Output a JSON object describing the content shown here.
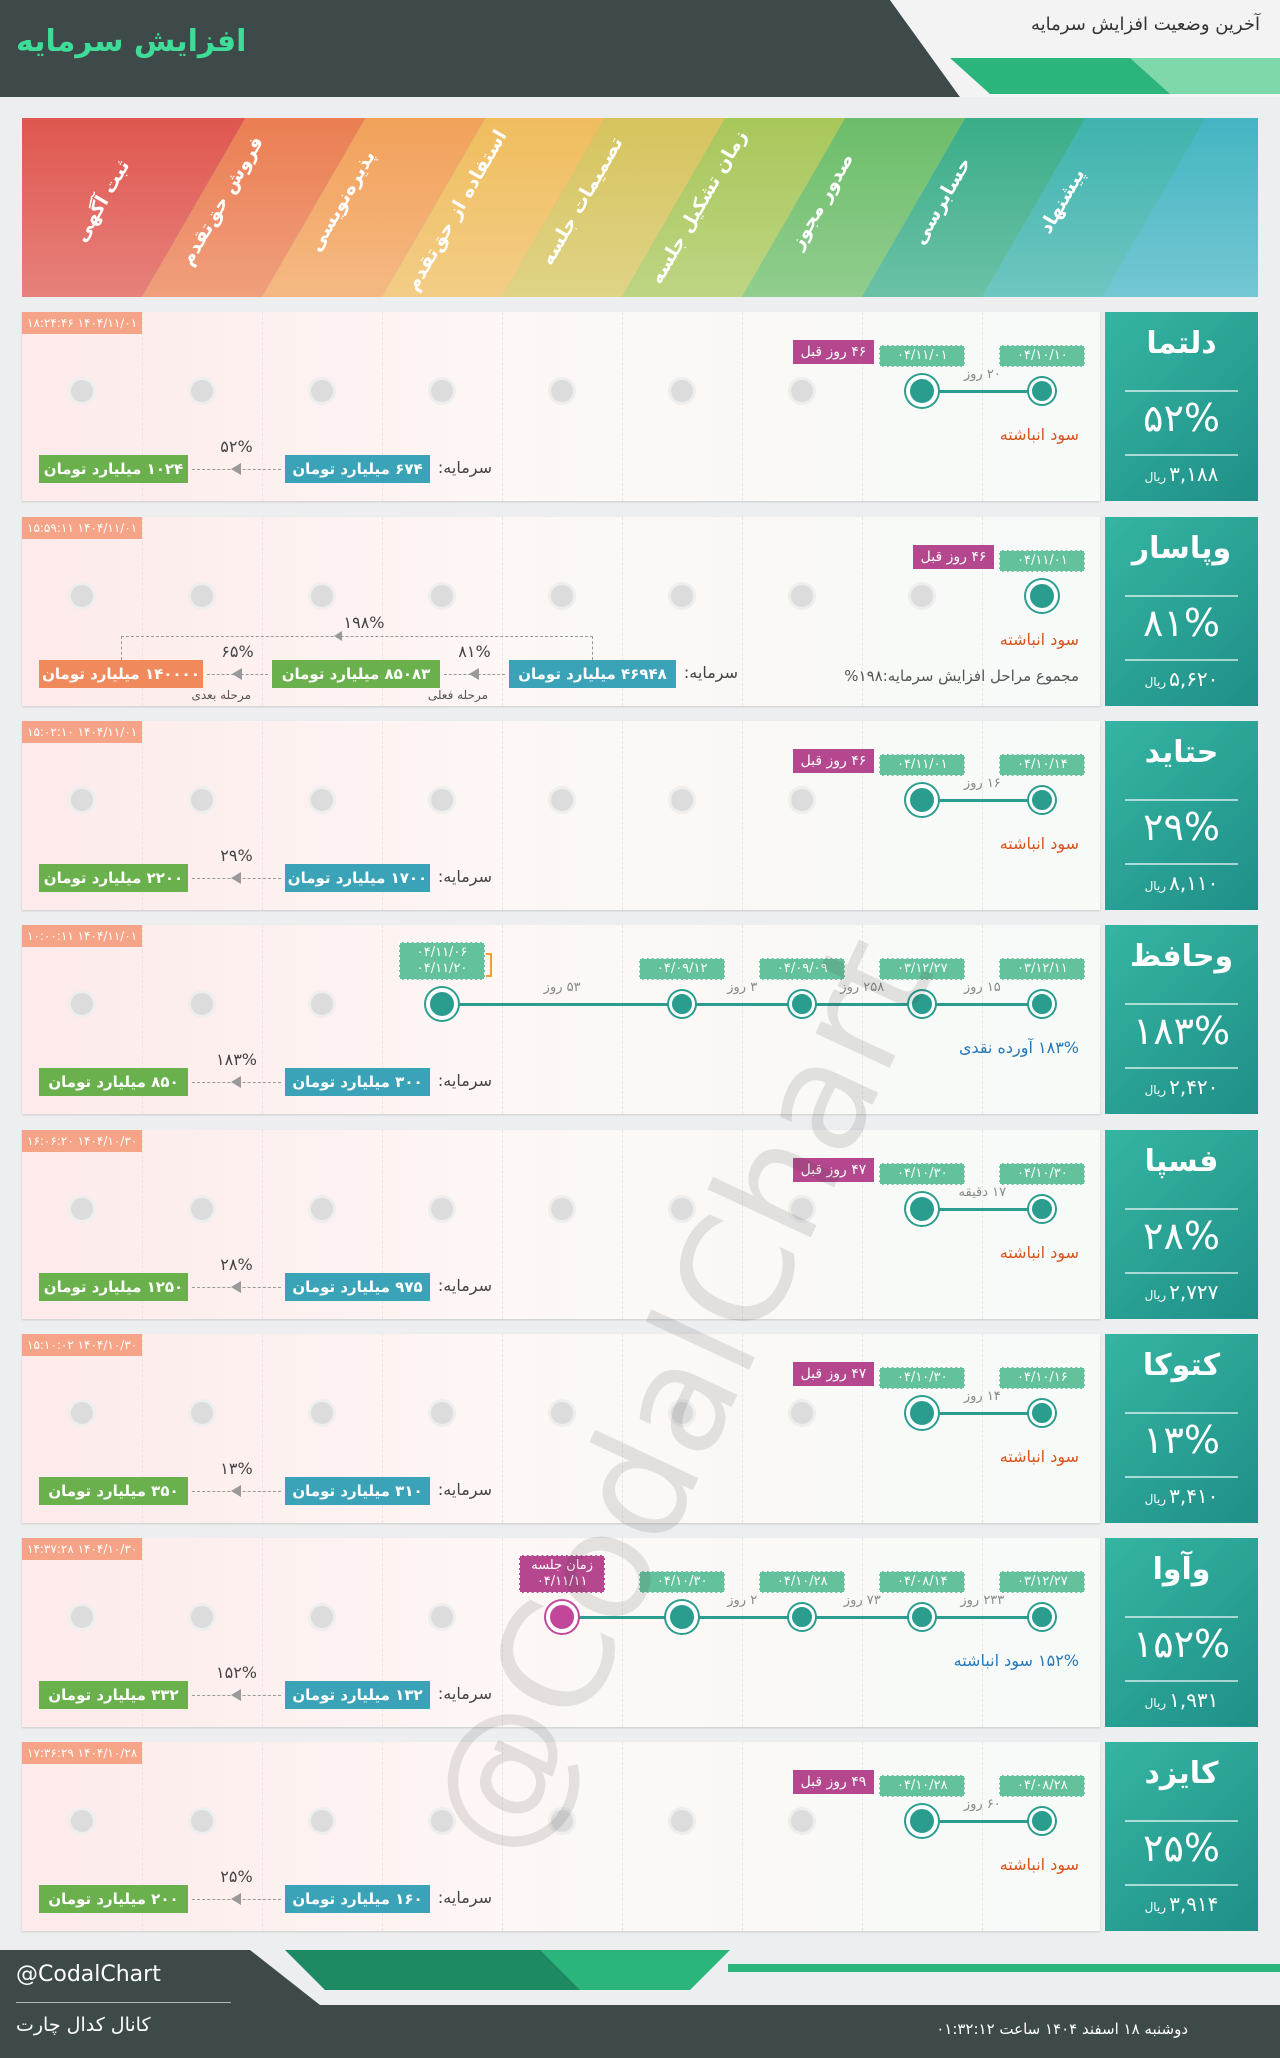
{
  "header": {
    "title": "افزایش سرمایه",
    "subtitle": "آخرین وضعیت افزایش سرمایه"
  },
  "stages": [
    "پیشنهاد",
    "حسابرسی",
    "صدور مجوز",
    "زمان تشکیل جلسه",
    "تصمیمات جلسه",
    "استفاده از حق‌تقدم",
    "پذیره‌نویسی",
    "فروش حق‌تقدم",
    "ثبت آگهی"
  ],
  "companies": [
    {
      "name": "دلتما",
      "percent": "۵۲%",
      "price": "۳,۱۸۸",
      "price_unit": "ریال",
      "timestamp": "۱۴۰۴/۱۱/۰۱ ۱۸:۲۴:۴۶",
      "timeline": [
        {
          "dates": [
            "۰۴/۱۰/۱۰"
          ]
        },
        {
          "dates": [
            "۰۴/۱۱/۰۱"
          ],
          "badge": "۴۶ روز قبل",
          "gap": "۲۰ روز"
        }
      ],
      "status": "سود انباشته",
      "capital": {
        "label": "سرمایه:",
        "steps": [
          {
            "amount": "۶۷۴ میلیارد تومان"
          },
          {
            "amount": "۱۰۲۴ میلیارد تومان",
            "percent": "۵۲%"
          }
        ]
      }
    },
    {
      "name": "وپاسار",
      "percent": "۸۱%",
      "price": "۵,۶۲۰",
      "price_unit": "ریال",
      "timestamp": "۱۴۰۴/۱۱/۰۱ ۱۵:۵۹:۱۱",
      "timeline": [
        {
          "dates": [
            "۰۴/۱۱/۰۱"
          ],
          "badge": "۴۶ روز قبل"
        }
      ],
      "status": "سود انباشته",
      "summary": "مجموع مراحل افزایش سرمایه:۱۹۸%",
      "capital": {
        "label": "سرمایه:",
        "total": "۱۹۸%",
        "steps": [
          {
            "amount": "۴۶۹۴۸ میلیارد تومان"
          },
          {
            "amount": "۸۵۰۸۳ میلیارد تومان",
            "percent": "۸۱%",
            "note": "مرحله فعلی"
          },
          {
            "amount": "۱۴۰۰۰۰ میلیارد تومان",
            "percent": "۶۵%",
            "note": "مرحله بعدی"
          }
        ]
      }
    },
    {
      "name": "حتاید",
      "percent": "۲۹%",
      "price": "۸,۱۱۰",
      "price_unit": "ریال",
      "timestamp": "۱۴۰۴/۱۱/۰۱ ۱۵:۰۲:۱۰",
      "timeline": [
        {
          "dates": [
            "۰۴/۱۰/۱۴"
          ]
        },
        {
          "dates": [
            "۰۴/۱۱/۰۱"
          ],
          "badge": "۴۶ روز قبل",
          "gap": "۱۶ روز"
        }
      ],
      "status": "سود انباشته",
      "capital": {
        "label": "سرمایه:",
        "steps": [
          {
            "amount": "۱۷۰۰ میلیارد تومان"
          },
          {
            "amount": "۲۲۰۰ میلیارد تومان",
            "percent": "۲۹%"
          }
        ]
      }
    },
    {
      "name": "وحافظ",
      "percent": "۱۸۳%",
      "price": "۲,۴۲۰",
      "price_unit": "ریال",
      "timestamp": "۱۴۰۴/۱۱/۰۱ ۱۰:۰۰:۱۱",
      "timeline": [
        {
          "dates": [
            "۰۳/۱۲/۱۱"
          ]
        },
        {
          "dates": [
            "۰۳/۱۲/۲۷"
          ],
          "gap": "۱۵ روز"
        },
        {
          "dates": [
            "۰۴/۰۹/۰۹"
          ],
          "gap": "۲۵۸ روز"
        },
        {
          "dates": [
            "۰۴/۰۹/۱۲"
          ],
          "gap": "۳ روز"
        },
        null,
        {
          "dates": [
            "۰۴/۱۱/۰۶",
            "۰۴/۱۱/۲۰"
          ],
          "gap": "۵۳ روز"
        }
      ],
      "status": "۱۸۳% آورده نقدی",
      "capital": {
        "label": "سرمایه:",
        "steps": [
          {
            "amount": "۳۰۰ میلیارد تومان"
          },
          {
            "amount": "۸۵۰ میلیارد تومان",
            "percent": "۱۸۳%"
          }
        ]
      }
    },
    {
      "name": "فسپا",
      "percent": "۲۸%",
      "price": "۲,۷۲۷",
      "price_unit": "ریال",
      "timestamp": "۱۴۰۴/۱۰/۳۰ ۱۶:۰۶:۲۰",
      "timeline": [
        {
          "dates": [
            "۰۴/۱۰/۳۰"
          ]
        },
        {
          "dates": [
            "۰۴/۱۰/۳۰"
          ],
          "badge": "۴۷ روز قبل",
          "gap": "۱۷ دقیقه"
        }
      ],
      "status": "سود انباشته",
      "capital": {
        "label": "سرمایه:",
        "steps": [
          {
            "amount": "۹۷۵ میلیارد تومان"
          },
          {
            "amount": "۱۲۵۰ میلیارد تومان",
            "percent": "۲۸%"
          }
        ]
      }
    },
    {
      "name": "کتوکا",
      "percent": "۱۳%",
      "price": "۳,۴۱۰",
      "price_unit": "ریال",
      "timestamp": "۱۴۰۴/۱۰/۳۰ ۱۵:۱۰:۰۲",
      "timeline": [
        {
          "dates": [
            "۰۴/۱۰/۱۶"
          ]
        },
        {
          "dates": [
            "۰۴/۱۰/۳۰"
          ],
          "badge": "۴۷ روز قبل",
          "gap": "۱۴ روز"
        }
      ],
      "status": "سود انباشته",
      "capital": {
        "label": "سرمایه:",
        "steps": [
          {
            "amount": "۳۱۰ میلیارد تومان"
          },
          {
            "amount": "۳۵۰ میلیارد تومان",
            "percent": "۱۳%"
          }
        ]
      }
    },
    {
      "name": "وآوا",
      "percent": "۱۵۲%",
      "price": "۱,۹۳۱",
      "price_unit": "ریال",
      "timestamp": "۱۴۰۴/۱۰/۳۰ ۱۴:۳۷:۲۸",
      "timeline": [
        {
          "dates": [
            "۰۳/۱۲/۲۷"
          ]
        },
        {
          "dates": [
            "۰۴/۰۸/۱۴"
          ],
          "gap": "۲۳۳ روز"
        },
        {
          "dates": [
            "۰۴/۱۰/۲۸"
          ],
          "gap": "۷۳ روز"
        },
        {
          "dates": [
            "۰۴/۱۰/۳۰"
          ],
          "gap": "۲ روز"
        },
        {
          "label": "زمان جلسه",
          "dates": [
            "۰۴/۱۱/۱۱"
          ]
        }
      ],
      "status": "۱۵۲% سود انباشته",
      "capital": {
        "label": "سرمایه:",
        "steps": [
          {
            "amount": "۱۳۲ میلیارد تومان"
          },
          {
            "amount": "۳۳۲ میلیارد تومان",
            "percent": "۱۵۲%"
          }
        ]
      }
    },
    {
      "name": "کایزد",
      "percent": "۲۵%",
      "price": "۳,۹۱۴",
      "price_unit": "ریال",
      "timestamp": "۱۴۰۴/۱۰/۲۸ ۱۷:۳۶:۲۹",
      "timeline": [
        {
          "dates": [
            "۰۴/۰۸/۲۸"
          ]
        },
        {
          "dates": [
            "۰۴/۱۰/۲۸"
          ],
          "badge": "۴۹ روز قبل",
          "gap": "۶۰ روز"
        }
      ],
      "status": "سود انباشته",
      "capital": {
        "label": "سرمایه:",
        "steps": [
          {
            "amount": "۱۶۰ میلیارد تومان"
          },
          {
            "amount": "۲۰۰ میلیارد تومان",
            "percent": "۲۵%"
          }
        ]
      }
    }
  ],
  "watermark": "@CodalChart",
  "footer": {
    "handle": "@CodalChart",
    "channel": "کانال کدال چارت",
    "date": "دوشنبه ۱۸ اسفند ۱۴۰۴ ساعت ۰۱:۳۲:۱۲"
  }
}
